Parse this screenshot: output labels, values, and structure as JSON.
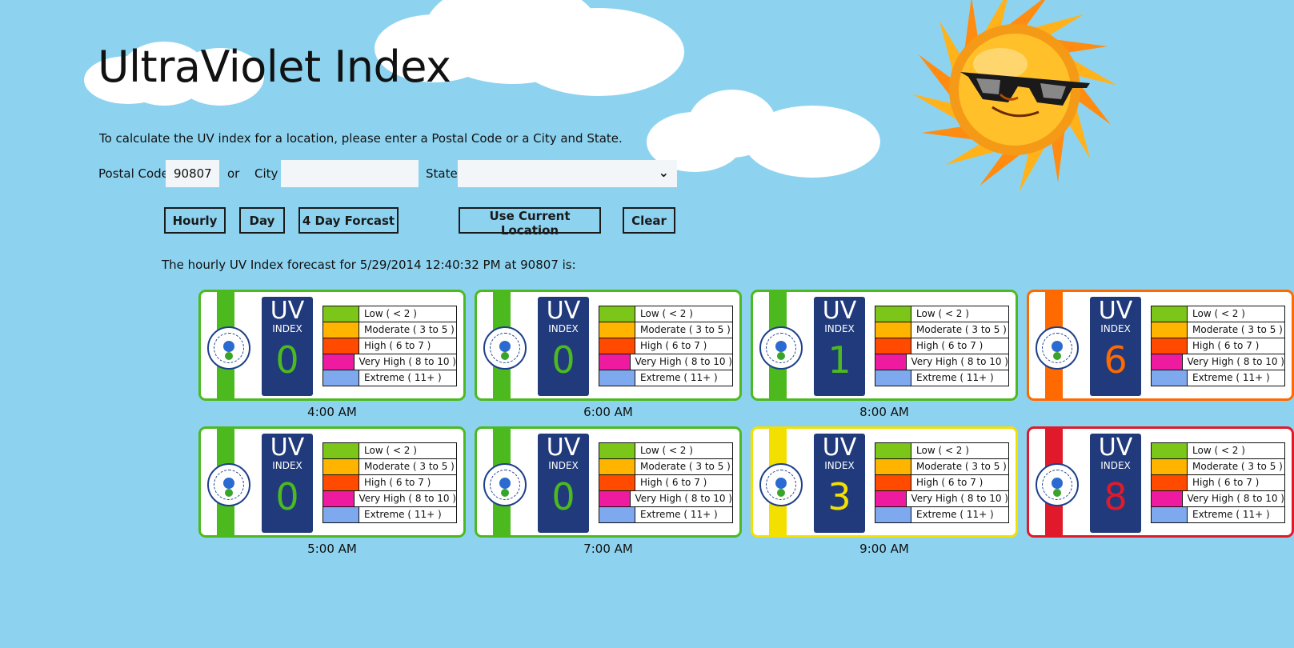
{
  "app": {
    "title": "UltraViolet Index",
    "instructions": "To calculate the UV index for a location, please enter a Postal Code or a City and State."
  },
  "form": {
    "postal_label": "Postal Code",
    "postal_value": "90807",
    "or_label": "or",
    "city_label": "City",
    "city_value": "",
    "state_label": "State",
    "state_value": ""
  },
  "buttons": {
    "hourly": "Hourly",
    "day": "Day",
    "four_day": "4 Day Forcast",
    "current_location": "Use Current Location",
    "clear": "Clear"
  },
  "result_text": "The hourly UV Index forecast for 5/29/2014 12:40:32 PM at 90807 is:",
  "uv_badge": {
    "title": "UV",
    "subtitle": "INDEX"
  },
  "legend": [
    {
      "label": "Low  ( < 2 )",
      "color": "#7cc61a"
    },
    {
      "label": "Moderate  ( 3 to 5 )",
      "color": "#ffb400"
    },
    {
      "label": "High  ( 6 to 7 )",
      "color": "#ff4a00"
    },
    {
      "label": "Very High  ( 8 to 10 )",
      "color": "#ee1aa0"
    },
    {
      "label": "Extreme  ( 11+ )",
      "color": "#7fa9ee"
    }
  ],
  "forecast": [
    {
      "time": "4:00 AM",
      "value": "0",
      "color": "#4cba1e"
    },
    {
      "time": "5:00 AM",
      "value": "0",
      "color": "#4cba1e"
    },
    {
      "time": "6:00 AM",
      "value": "0",
      "color": "#4cba1e"
    },
    {
      "time": "7:00 AM",
      "value": "0",
      "color": "#4cba1e"
    },
    {
      "time": "8:00 AM",
      "value": "1",
      "color": "#4cba1e"
    },
    {
      "time": "9:00 AM",
      "value": "3",
      "color": "#f4e000"
    },
    {
      "time": "",
      "value": "6",
      "color": "#ff6a00"
    },
    {
      "time": "",
      "value": "8",
      "color": "#e01a2a"
    }
  ]
}
